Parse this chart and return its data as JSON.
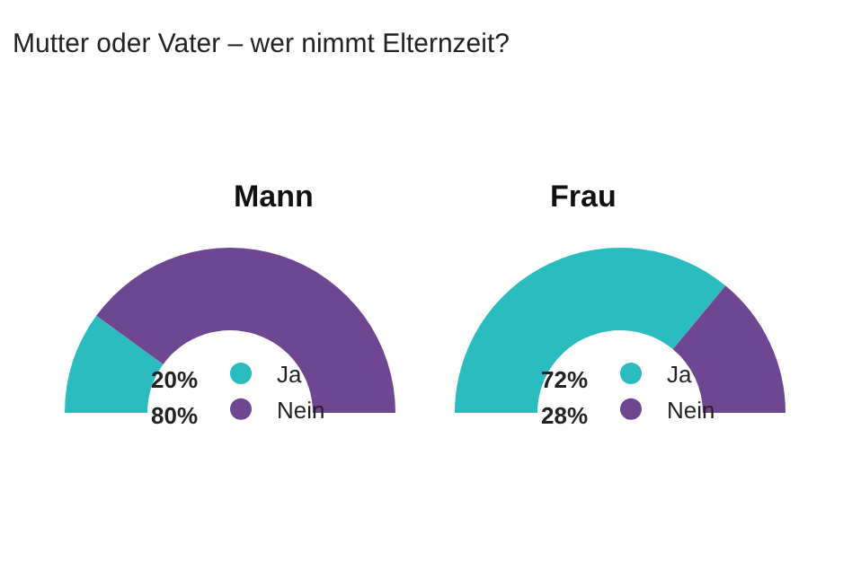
{
  "chart_data": [
    {
      "type": "donut",
      "title": "Mann",
      "annotations": [
        "Mutter oder Vater – wer nimmt Elternzeit?"
      ],
      "categories": [
        "Ja",
        "Nein"
      ],
      "values": [
        20,
        80
      ],
      "value_labels": [
        "20%",
        "80%"
      ],
      "colors": [
        "#2bbcbf",
        "#6e4692"
      ],
      "legend": "center"
    },
    {
      "type": "donut",
      "title": "Frau",
      "categories": [
        "Ja",
        "Nein"
      ],
      "values": [
        72,
        28
      ],
      "value_labels": [
        "72%",
        "28%"
      ],
      "colors": [
        "#2bbcbf",
        "#6e4692"
      ],
      "legend": "center"
    }
  ]
}
